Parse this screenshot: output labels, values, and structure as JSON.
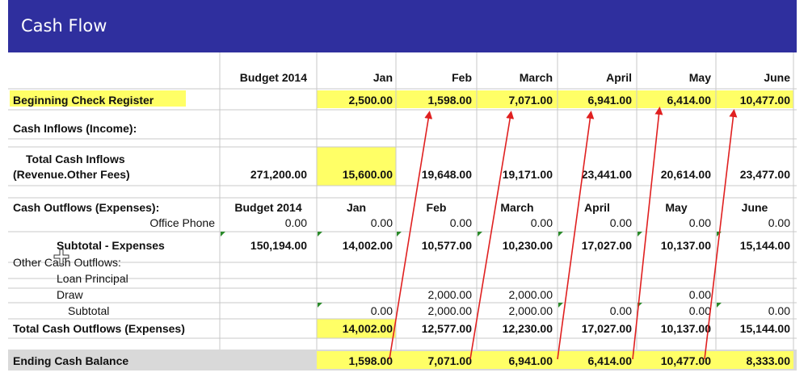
{
  "header": {
    "title": "Cash Flow"
  },
  "colors": {
    "header_bg": "#2f2f9e",
    "highlight": "#ffff66",
    "gray_row": "#d9d9d9",
    "arrow": "#e02020",
    "grid": "#c8c8c8"
  },
  "columns": [
    "Budget 2014",
    "Jan",
    "Feb",
    "March",
    "April",
    "May",
    "June"
  ],
  "beginning": {
    "label": "Beginning Check Register",
    "values": [
      "",
      "2,500.00",
      "1,598.00",
      "7,071.00",
      "6,941.00",
      "6,414.00",
      "10,477.00"
    ]
  },
  "inflows": {
    "label": "Cash Inflows (Income):",
    "total_label_1": "Total Cash Inflows",
    "total_label_2": "(Revenue.Other Fees)",
    "values": [
      "271,200.00",
      "15,600.00",
      "19,648.00",
      "19,171.00",
      "23,441.00",
      "20,614.00",
      "23,477.00"
    ]
  },
  "outflows": {
    "label": "Cash Outflows (Expenses):",
    "columns": [
      "Budget 2014",
      "Jan",
      "Feb",
      "March",
      "April",
      "May",
      "June"
    ],
    "office_phone": {
      "label": "Office Phone",
      "values": [
        "0.00",
        "0.00",
        "0.00",
        "0.00",
        "0.00",
        "0.00",
        "0.00"
      ]
    },
    "subtotal": {
      "label": "Subtotal - Expenses",
      "values": [
        "150,194.00",
        "14,002.00",
        "10,577.00",
        "10,230.00",
        "17,027.00",
        "10,137.00",
        "15,144.00"
      ]
    }
  },
  "other": {
    "label": "Other Cash Outflows:",
    "loan_principal": {
      "label": "Loan Principal"
    },
    "draw": {
      "label": "Draw",
      "values": [
        "",
        "",
        "2,000.00",
        "2,000.00",
        "",
        "0.00",
        ""
      ]
    },
    "subtotal": {
      "label": "Subtotal",
      "values": [
        "",
        "0.00",
        "2,000.00",
        "2,000.00",
        "0.00",
        "0.00",
        "0.00"
      ]
    }
  },
  "total_outflows": {
    "label": "Total Cash Outflows (Expenses)",
    "values": [
      "",
      "14,002.00",
      "12,577.00",
      "12,230.00",
      "17,027.00",
      "10,137.00",
      "15,144.00"
    ]
  },
  "ending": {
    "label": "Ending Cash Balance",
    "values": [
      "",
      "1,598.00",
      "7,071.00",
      "6,941.00",
      "6,414.00",
      "10,477.00",
      "8,333.00"
    ]
  }
}
